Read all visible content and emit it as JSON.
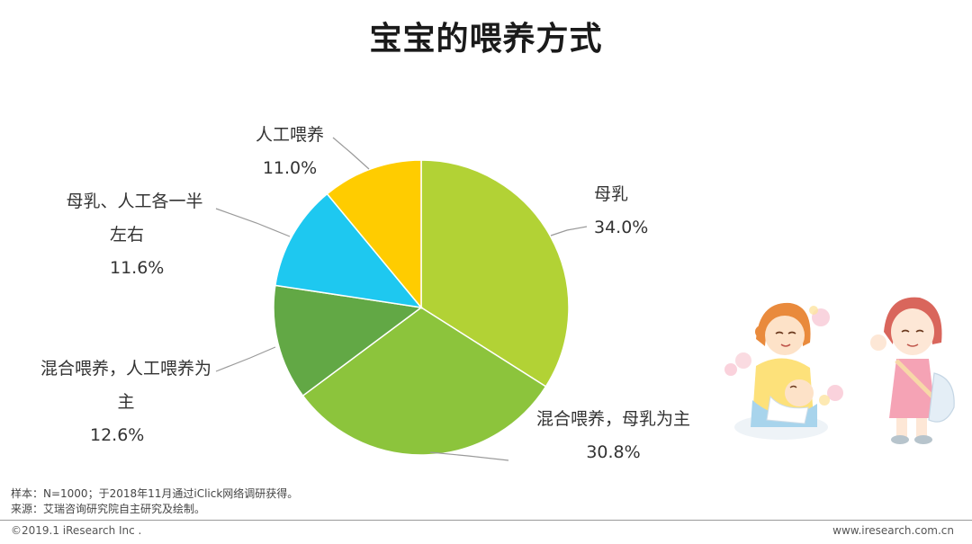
{
  "title": "宝宝的喂养方式",
  "chart_data": {
    "type": "pie",
    "slices": [
      {
        "label": "母乳",
        "value": 34.0,
        "display": "34.0%",
        "color": "#b2d235"
      },
      {
        "label": "混合喂养，母乳为主",
        "value": 30.8,
        "display": "30.8%",
        "color": "#8cc43c"
      },
      {
        "label": "混合喂养，人工喂养为主",
        "value": 12.6,
        "display": "12.6%",
        "color": "#62a845"
      },
      {
        "label": "母乳、人工各一半左右",
        "value": 11.6,
        "display": "11.6%",
        "color": "#1ec8f0"
      },
      {
        "label": "人工喂养",
        "value": 11.0,
        "display": "11.0%",
        "color": "#ffcc00"
      }
    ]
  },
  "labels": {
    "breast": {
      "line1": "母乳",
      "pct": "34.0%"
    },
    "mixed_breast": {
      "line1": "混合喂养，母乳为主",
      "pct": "30.8%"
    },
    "mixed_formula": {
      "line1": "混合喂养，人工喂养为",
      "line2": "主",
      "pct": "12.6%"
    },
    "half": {
      "line1": "母乳、人工各一半",
      "line2": "左右",
      "pct": "11.6%"
    },
    "formula": {
      "line1": "人工喂养",
      "pct": "11.0%"
    }
  },
  "notes": {
    "sample": "样本：N=1000；于2018年11月通过iClick网络调研获得。",
    "source": "来源：艾瑞咨询研究院自主研究及绘制。"
  },
  "footer": {
    "copyright": "©2019.1 iResearch Inc .",
    "website": "www.iresearch.com.cn"
  }
}
